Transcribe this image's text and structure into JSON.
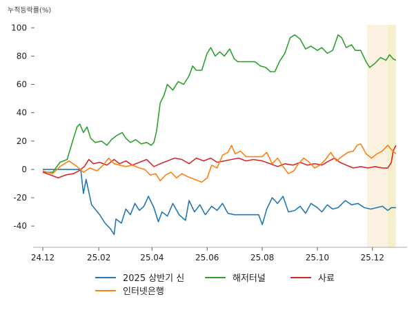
{
  "chart_data": {
    "type": "line",
    "ylabel": "누적등락률(%)",
    "xlabel": "",
    "title": "",
    "ylim": [
      -55,
      105
    ],
    "yticks": [
      -40,
      -20,
      0,
      20,
      40,
      60,
      80,
      100
    ],
    "xlim": [
      "2024-12-01",
      "2025-12-31"
    ],
    "xticks": [
      {
        "date": "2024-12-01",
        "label": "24.12"
      },
      {
        "date": "2025-02-01",
        "label": "25.02"
      },
      {
        "date": "2025-04-01",
        "label": "25.04"
      },
      {
        "date": "2025-06-01",
        "label": "25.06"
      },
      {
        "date": "2025-08-01",
        "label": "25.08"
      },
      {
        "date": "2025-10-01",
        "label": "25.10"
      },
      {
        "date": "2025-12-01",
        "label": "25.12"
      }
    ],
    "highlight_ranges": [
      {
        "start": "2025-11-25",
        "end": "2025-12-18",
        "color": "#fbf1e0"
      },
      {
        "start": "2025-12-18",
        "end": "2025-12-27",
        "color": "#f5f0cc"
      }
    ],
    "legend_position": "bottom",
    "series": [
      {
        "name": "2025 상반기 신",
        "color": "#1f77b4",
        "points": [
          [
            "2024-12-01",
            0
          ],
          [
            "2024-12-20",
            0
          ],
          [
            "2025-01-12",
            0
          ],
          [
            "2025-01-15",
            -17
          ],
          [
            "2025-01-18",
            -7
          ],
          [
            "2025-01-24",
            -25
          ],
          [
            "2025-02-02",
            -32
          ],
          [
            "2025-02-08",
            -38
          ],
          [
            "2025-02-14",
            -42
          ],
          [
            "2025-02-18",
            -46
          ],
          [
            "2025-02-20",
            -35
          ],
          [
            "2025-02-26",
            -38
          ],
          [
            "2025-03-03",
            -28
          ],
          [
            "2025-03-08",
            -32
          ],
          [
            "2025-03-13",
            -24
          ],
          [
            "2025-03-18",
            -29
          ],
          [
            "2025-03-23",
            -26
          ],
          [
            "2025-03-28",
            -19
          ],
          [
            "2025-04-03",
            -27
          ],
          [
            "2025-04-08",
            -37
          ],
          [
            "2025-04-12",
            -30
          ],
          [
            "2025-04-18",
            -33
          ],
          [
            "2025-04-24",
            -24
          ],
          [
            "2025-05-01",
            -32
          ],
          [
            "2025-05-08",
            -36
          ],
          [
            "2025-05-12",
            -22
          ],
          [
            "2025-05-18",
            -30
          ],
          [
            "2025-05-24",
            -25
          ],
          [
            "2025-05-30",
            -32
          ],
          [
            "2025-06-06",
            -26
          ],
          [
            "2025-06-12",
            -29
          ],
          [
            "2025-06-18",
            -24
          ],
          [
            "2025-06-24",
            -31
          ],
          [
            "2025-07-01",
            -32
          ],
          [
            "2025-07-10",
            -32
          ],
          [
            "2025-07-20",
            -32
          ],
          [
            "2025-07-28",
            -32
          ],
          [
            "2025-08-01",
            -39
          ],
          [
            "2025-08-06",
            -28
          ],
          [
            "2025-08-12",
            -20
          ],
          [
            "2025-08-18",
            -24
          ],
          [
            "2025-08-24",
            -19
          ],
          [
            "2025-08-30",
            -30
          ],
          [
            "2025-09-06",
            -29
          ],
          [
            "2025-09-12",
            -26
          ],
          [
            "2025-09-18",
            -31
          ],
          [
            "2025-09-24",
            -24
          ],
          [
            "2025-10-01",
            -27
          ],
          [
            "2025-10-06",
            -30
          ],
          [
            "2025-10-12",
            -25
          ],
          [
            "2025-10-18",
            -28
          ],
          [
            "2025-10-24",
            -27
          ],
          [
            "2025-11-01",
            -22
          ],
          [
            "2025-11-08",
            -25
          ],
          [
            "2025-11-15",
            -24
          ],
          [
            "2025-11-22",
            -27
          ],
          [
            "2025-11-29",
            -28
          ],
          [
            "2025-12-06",
            -27
          ],
          [
            "2025-12-12",
            -26
          ],
          [
            "2025-12-18",
            -29
          ],
          [
            "2025-12-22",
            -27
          ],
          [
            "2025-12-27",
            -27
          ]
        ]
      },
      {
        "name": "해저터널",
        "color": "#2ca02c",
        "points": [
          [
            "2024-12-01",
            -2
          ],
          [
            "2024-12-12",
            -2
          ],
          [
            "2024-12-20",
            5
          ],
          [
            "2024-12-28",
            7
          ],
          [
            "2025-01-04",
            22
          ],
          [
            "2025-01-08",
            30
          ],
          [
            "2025-01-11",
            32
          ],
          [
            "2025-01-15",
            26
          ],
          [
            "2025-01-19",
            30
          ],
          [
            "2025-01-23",
            22
          ],
          [
            "2025-01-28",
            19
          ],
          [
            "2025-02-04",
            20
          ],
          [
            "2025-02-10",
            17
          ],
          [
            "2025-02-15",
            21
          ],
          [
            "2025-02-21",
            24
          ],
          [
            "2025-02-27",
            26
          ],
          [
            "2025-03-03",
            22
          ],
          [
            "2025-03-08",
            19
          ],
          [
            "2025-03-14",
            21
          ],
          [
            "2025-03-20",
            18
          ],
          [
            "2025-03-26",
            19
          ],
          [
            "2025-03-31",
            17
          ],
          [
            "2025-04-03",
            19
          ],
          [
            "2025-04-06",
            27
          ],
          [
            "2025-04-10",
            47
          ],
          [
            "2025-04-14",
            52
          ],
          [
            "2025-04-18",
            60
          ],
          [
            "2025-04-24",
            56
          ],
          [
            "2025-04-30",
            62
          ],
          [
            "2025-05-06",
            60
          ],
          [
            "2025-05-12",
            66
          ],
          [
            "2025-05-16",
            73
          ],
          [
            "2025-05-20",
            70
          ],
          [
            "2025-05-26",
            70
          ],
          [
            "2025-06-01",
            82
          ],
          [
            "2025-06-05",
            86
          ],
          [
            "2025-06-10",
            80
          ],
          [
            "2025-06-15",
            83
          ],
          [
            "2025-06-20",
            80
          ],
          [
            "2025-06-26",
            85
          ],
          [
            "2025-07-01",
            78
          ],
          [
            "2025-07-05",
            76
          ],
          [
            "2025-07-15",
            76
          ],
          [
            "2025-07-24",
            76
          ],
          [
            "2025-07-30",
            73
          ],
          [
            "2025-08-05",
            72
          ],
          [
            "2025-08-10",
            69
          ],
          [
            "2025-08-15",
            69
          ],
          [
            "2025-08-20",
            76
          ],
          [
            "2025-08-26",
            82
          ],
          [
            "2025-09-01",
            93
          ],
          [
            "2025-09-06",
            95
          ],
          [
            "2025-09-12",
            92
          ],
          [
            "2025-09-18",
            85
          ],
          [
            "2025-09-24",
            87
          ],
          [
            "2025-10-01",
            84
          ],
          [
            "2025-10-06",
            86
          ],
          [
            "2025-10-12",
            82
          ],
          [
            "2025-10-18",
            84
          ],
          [
            "2025-10-24",
            95
          ],
          [
            "2025-10-28",
            93
          ],
          [
            "2025-11-02",
            86
          ],
          [
            "2025-11-08",
            88
          ],
          [
            "2025-11-12",
            84
          ],
          [
            "2025-11-18",
            84
          ],
          [
            "2025-11-24",
            76
          ],
          [
            "2025-11-28",
            72
          ],
          [
            "2025-12-04",
            75
          ],
          [
            "2025-12-10",
            79
          ],
          [
            "2025-12-16",
            77
          ],
          [
            "2025-12-20",
            81
          ],
          [
            "2025-12-24",
            78
          ],
          [
            "2025-12-27",
            77
          ]
        ]
      },
      {
        "name": "사료",
        "color": "#d62728",
        "points": [
          [
            "2024-12-01",
            -2
          ],
          [
            "2024-12-10",
            -4
          ],
          [
            "2024-12-18",
            -6
          ],
          [
            "2024-12-26",
            -4
          ],
          [
            "2025-01-04",
            -3
          ],
          [
            "2025-01-10",
            -1
          ],
          [
            "2025-01-16",
            2
          ],
          [
            "2025-01-21",
            7
          ],
          [
            "2025-01-26",
            4
          ],
          [
            "2025-02-02",
            5
          ],
          [
            "2025-02-10",
            3
          ],
          [
            "2025-02-18",
            7
          ],
          [
            "2025-02-24",
            4
          ],
          [
            "2025-03-03",
            6
          ],
          [
            "2025-03-10",
            3
          ],
          [
            "2025-03-18",
            5
          ],
          [
            "2025-03-26",
            7
          ],
          [
            "2025-04-03",
            2
          ],
          [
            "2025-04-10",
            4
          ],
          [
            "2025-04-18",
            6
          ],
          [
            "2025-04-26",
            8
          ],
          [
            "2025-05-04",
            7
          ],
          [
            "2025-05-12",
            4
          ],
          [
            "2025-05-20",
            8
          ],
          [
            "2025-05-28",
            6
          ],
          [
            "2025-06-05",
            8
          ],
          [
            "2025-06-12",
            5
          ],
          [
            "2025-06-20",
            6
          ],
          [
            "2025-06-28",
            7
          ],
          [
            "2025-07-06",
            8
          ],
          [
            "2025-07-14",
            6
          ],
          [
            "2025-07-22",
            7
          ],
          [
            "2025-08-01",
            6
          ],
          [
            "2025-08-10",
            4
          ],
          [
            "2025-08-18",
            2
          ],
          [
            "2025-08-26",
            4
          ],
          [
            "2025-09-04",
            3
          ],
          [
            "2025-09-12",
            5
          ],
          [
            "2025-09-20",
            3
          ],
          [
            "2025-09-28",
            4
          ],
          [
            "2025-10-06",
            3
          ],
          [
            "2025-10-14",
            6
          ],
          [
            "2025-10-20",
            8
          ],
          [
            "2025-10-26",
            5
          ],
          [
            "2025-11-02",
            3
          ],
          [
            "2025-11-10",
            1
          ],
          [
            "2025-11-18",
            2
          ],
          [
            "2025-11-26",
            1
          ],
          [
            "2025-12-04",
            2
          ],
          [
            "2025-12-12",
            1
          ],
          [
            "2025-12-18",
            1
          ],
          [
            "2025-12-22",
            5
          ],
          [
            "2025-12-24",
            13
          ],
          [
            "2025-12-27",
            17
          ]
        ]
      },
      {
        "name": "인터넷은행",
        "color": "#ff7f0e",
        "points": [
          [
            "2024-12-01",
            -1
          ],
          [
            "2024-12-12",
            -3
          ],
          [
            "2024-12-20",
            2
          ],
          [
            "2024-12-30",
            6
          ],
          [
            "2025-01-08",
            2
          ],
          [
            "2025-01-15",
            -2
          ],
          [
            "2025-01-22",
            1
          ],
          [
            "2025-01-30",
            -1
          ],
          [
            "2025-02-06",
            3
          ],
          [
            "2025-02-12",
            8
          ],
          [
            "2025-02-18",
            4
          ],
          [
            "2025-02-24",
            3
          ],
          [
            "2025-03-03",
            2
          ],
          [
            "2025-03-10",
            3
          ],
          [
            "2025-03-18",
            1
          ],
          [
            "2025-03-24",
            0
          ],
          [
            "2025-03-30",
            -4
          ],
          [
            "2025-04-05",
            -3
          ],
          [
            "2025-04-10",
            -8
          ],
          [
            "2025-04-16",
            -4
          ],
          [
            "2025-04-22",
            -2
          ],
          [
            "2025-04-28",
            -6
          ],
          [
            "2025-05-04",
            -3
          ],
          [
            "2025-05-10",
            -5
          ],
          [
            "2025-05-18",
            -7
          ],
          [
            "2025-05-26",
            -9
          ],
          [
            "2025-06-01",
            -6
          ],
          [
            "2025-06-06",
            3
          ],
          [
            "2025-06-12",
            1
          ],
          [
            "2025-06-18",
            10
          ],
          [
            "2025-06-24",
            12
          ],
          [
            "2025-06-28",
            17
          ],
          [
            "2025-07-02",
            11
          ],
          [
            "2025-07-08",
            13
          ],
          [
            "2025-07-14",
            9
          ],
          [
            "2025-07-22",
            9
          ],
          [
            "2025-08-01",
            9
          ],
          [
            "2025-08-06",
            12
          ],
          [
            "2025-08-12",
            4
          ],
          [
            "2025-08-18",
            8
          ],
          [
            "2025-08-24",
            2
          ],
          [
            "2025-08-30",
            -3
          ],
          [
            "2025-09-05",
            -1
          ],
          [
            "2025-09-10",
            4
          ],
          [
            "2025-09-16",
            8
          ],
          [
            "2025-09-22",
            5
          ],
          [
            "2025-09-28",
            1
          ],
          [
            "2025-10-04",
            3
          ],
          [
            "2025-10-10",
            7
          ],
          [
            "2025-10-16",
            12
          ],
          [
            "2025-10-22",
            6
          ],
          [
            "2025-10-28",
            9
          ],
          [
            "2025-11-04",
            12
          ],
          [
            "2025-11-10",
            13
          ],
          [
            "2025-11-14",
            17
          ],
          [
            "2025-11-18",
            18
          ],
          [
            "2025-11-24",
            11
          ],
          [
            "2025-11-30",
            8
          ],
          [
            "2025-12-06",
            11
          ],
          [
            "2025-12-12",
            13
          ],
          [
            "2025-12-18",
            17
          ],
          [
            "2025-12-22",
            14
          ],
          [
            "2025-12-27",
            11
          ]
        ]
      }
    ],
    "legend": [
      {
        "label": "2025 상반기 신",
        "color": "#1f77b4"
      },
      {
        "label": "해저터널",
        "color": "#2ca02c"
      },
      {
        "label": "사료",
        "color": "#d62728"
      },
      {
        "label": "인터넷은행",
        "color": "#ff7f0e"
      }
    ]
  }
}
